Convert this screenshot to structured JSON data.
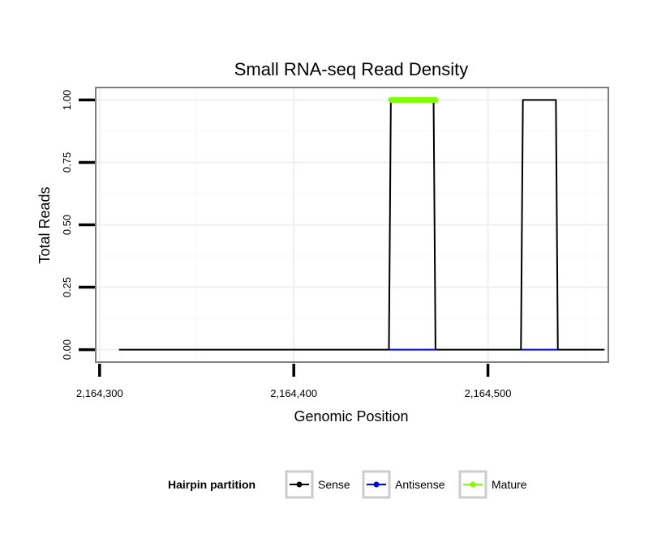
{
  "chart_data": {
    "type": "line",
    "title": "Small RNA-seq Read Density",
    "xlabel": "Genomic Position",
    "ylabel": "Total Reads",
    "xlim": [
      2164298,
      2164562
    ],
    "ylim": [
      -0.05,
      1.05
    ],
    "x_ticks": [
      2164300,
      2164400,
      2164500
    ],
    "x_tick_labels": [
      "2,164,300",
      "2,164,400",
      "2,164,500"
    ],
    "y_ticks": [
      0,
      0.25,
      0.5,
      0.75,
      1.0
    ],
    "y_tick_labels": [
      "0.00",
      "0.25",
      "0.50",
      "0.75",
      "1.00"
    ],
    "grid": true,
    "legend": {
      "title": "Hairpin partition",
      "position": "bottom"
    },
    "series": [
      {
        "name": "Sense",
        "color": "#000000",
        "x": [
          2164310,
          2164449,
          2164450,
          2164472,
          2164473,
          2164517,
          2164518,
          2164535,
          2164536,
          2164560
        ],
        "y": [
          0,
          0,
          1,
          1,
          0,
          0,
          1,
          1,
          0,
          0
        ]
      },
      {
        "name": "Antisense",
        "color": "#0000ff",
        "x": [
          2164449,
          2164473,
          2164517,
          2164536
        ],
        "y": [
          0,
          0,
          0,
          0
        ],
        "segments": [
          [
            0,
            1
          ],
          [
            2,
            3
          ]
        ]
      },
      {
        "name": "Mature",
        "color": "#7fff00",
        "x": [
          2164450,
          2164473
        ],
        "y": [
          1,
          1
        ]
      }
    ]
  }
}
